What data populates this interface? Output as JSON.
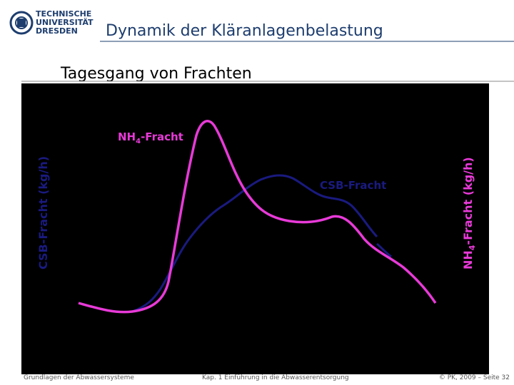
{
  "header": {
    "logo": [
      "TECHNISCHE",
      "UNIVERSITÄT",
      "DRESDEN"
    ],
    "title": "Dynamik der Kläranlagenbelastung"
  },
  "subtitle": "Tagesgang von Frachten",
  "chart": {
    "left_axis_label": "CSB-Fracht  (kg/h)",
    "right_axis_label": {
      "base": "NH",
      "sub": "4",
      "rest": "-Fracht  (kg/h)"
    },
    "nh4_label": {
      "base": "NH",
      "sub": "4",
      "rest": "-Fracht"
    },
    "csb_label": "CSB-Fracht"
  },
  "footer": {
    "left": "Grundlagen der Abwassersysteme",
    "center": "Kap. 1 Einführung in die Abwasserentsorgung",
    "right": "© PK, 2009 – Seite 32"
  }
}
